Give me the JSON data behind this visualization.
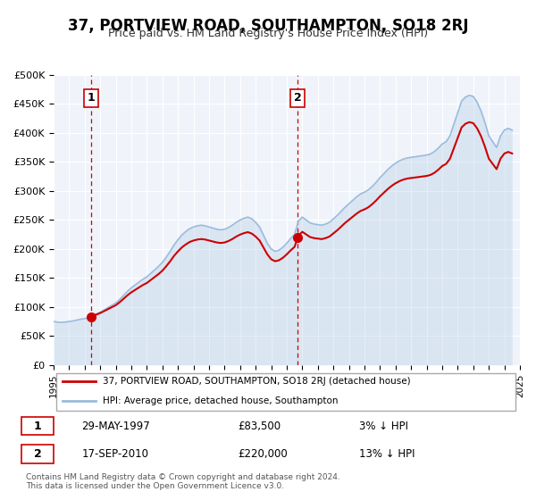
{
  "title": "37, PORTVIEW ROAD, SOUTHAMPTON, SO18 2RJ",
  "subtitle": "Price paid vs. HM Land Registry's House Price Index (HPI)",
  "title_fontsize": 13,
  "subtitle_fontsize": 10,
  "bg_color": "#f0f4fa",
  "plot_bg_color": "#f0f4fa",
  "legend_label_red": "37, PORTVIEW ROAD, SOUTHAMPTON, SO18 2RJ (detached house)",
  "legend_label_blue": "HPI: Average price, detached house, Southampton",
  "annotation1_label": "1",
  "annotation1_date": "29-MAY-1997",
  "annotation1_price": "£83,500",
  "annotation1_hpi": "3% ↓ HPI",
  "annotation2_label": "2",
  "annotation2_date": "17-SEP-2010",
  "annotation2_price": "£220,000",
  "annotation2_hpi": "13% ↓ HPI",
  "footer": "Contains HM Land Registry data © Crown copyright and database right 2024.\nThis data is licensed under the Open Government Licence v3.0.",
  "point1_x": 1997.41,
  "point1_y": 83500,
  "point2_x": 2010.71,
  "point2_y": 220000,
  "vline1_x": 1997.41,
  "vline2_x": 2010.71,
  "ylim": [
    0,
    500000
  ],
  "xlim": [
    1995,
    2025
  ],
  "red_color": "#cc0000",
  "blue_color": "#6699cc",
  "hpi_data_x": [
    1995.0,
    1995.25,
    1995.5,
    1995.75,
    1996.0,
    1996.25,
    1996.5,
    1996.75,
    1997.0,
    1997.25,
    1997.5,
    1997.75,
    1998.0,
    1998.25,
    1998.5,
    1998.75,
    1999.0,
    1999.25,
    1999.5,
    1999.75,
    2000.0,
    2000.25,
    2000.5,
    2000.75,
    2001.0,
    2001.25,
    2001.5,
    2001.75,
    2002.0,
    2002.25,
    2002.5,
    2002.75,
    2003.0,
    2003.25,
    2003.5,
    2003.75,
    2004.0,
    2004.25,
    2004.5,
    2004.75,
    2005.0,
    2005.25,
    2005.5,
    2005.75,
    2006.0,
    2006.25,
    2006.5,
    2006.75,
    2007.0,
    2007.25,
    2007.5,
    2007.75,
    2008.0,
    2008.25,
    2008.5,
    2008.75,
    2009.0,
    2009.25,
    2009.5,
    2009.75,
    2010.0,
    2010.25,
    2010.5,
    2010.75,
    2011.0,
    2011.25,
    2011.5,
    2011.75,
    2012.0,
    2012.25,
    2012.5,
    2012.75,
    2013.0,
    2013.25,
    2013.5,
    2013.75,
    2014.0,
    2014.25,
    2014.5,
    2014.75,
    2015.0,
    2015.25,
    2015.5,
    2015.75,
    2016.0,
    2016.25,
    2016.5,
    2016.75,
    2017.0,
    2017.25,
    2017.5,
    2017.75,
    2018.0,
    2018.25,
    2018.5,
    2018.75,
    2019.0,
    2019.25,
    2019.5,
    2019.75,
    2020.0,
    2020.25,
    2020.5,
    2020.75,
    2021.0,
    2021.25,
    2021.5,
    2021.75,
    2022.0,
    2022.25,
    2022.5,
    2022.75,
    2023.0,
    2023.25,
    2023.5,
    2023.75,
    2024.0,
    2024.25,
    2024.5
  ],
  "hpi_data_y": [
    75000,
    74000,
    73500,
    74000,
    75000,
    76000,
    77500,
    79000,
    80000,
    82000,
    85000,
    88000,
    91000,
    95000,
    99000,
    103000,
    107000,
    113000,
    120000,
    127000,
    133000,
    138000,
    143000,
    148000,
    152000,
    158000,
    164000,
    170000,
    177000,
    186000,
    196000,
    207000,
    216000,
    224000,
    230000,
    235000,
    238000,
    240000,
    241000,
    240000,
    238000,
    236000,
    234000,
    233000,
    234000,
    237000,
    241000,
    246000,
    250000,
    253000,
    255000,
    252000,
    246000,
    238000,
    224000,
    210000,
    200000,
    196000,
    198000,
    203000,
    210000,
    218000,
    225000,
    248000,
    255000,
    250000,
    245000,
    243000,
    242000,
    241000,
    243000,
    246000,
    252000,
    258000,
    265000,
    272000,
    278000,
    284000,
    290000,
    295000,
    298000,
    302000,
    308000,
    315000,
    323000,
    330000,
    337000,
    343000,
    348000,
    352000,
    355000,
    357000,
    358000,
    359000,
    360000,
    361000,
    362000,
    364000,
    368000,
    374000,
    381000,
    385000,
    395000,
    415000,
    435000,
    455000,
    462000,
    465000,
    463000,
    453000,
    438000,
    418000,
    395000,
    385000,
    375000,
    395000,
    405000,
    408000,
    405000
  ],
  "price_data_x": [
    1997.41,
    2010.71
  ],
  "price_data_y": [
    83500,
    220000
  ],
  "hpi_line_color": "#99bbdd",
  "price_line_color": "#cc0000",
  "marker_color": "#cc0000",
  "vline_color": "#cc0000"
}
